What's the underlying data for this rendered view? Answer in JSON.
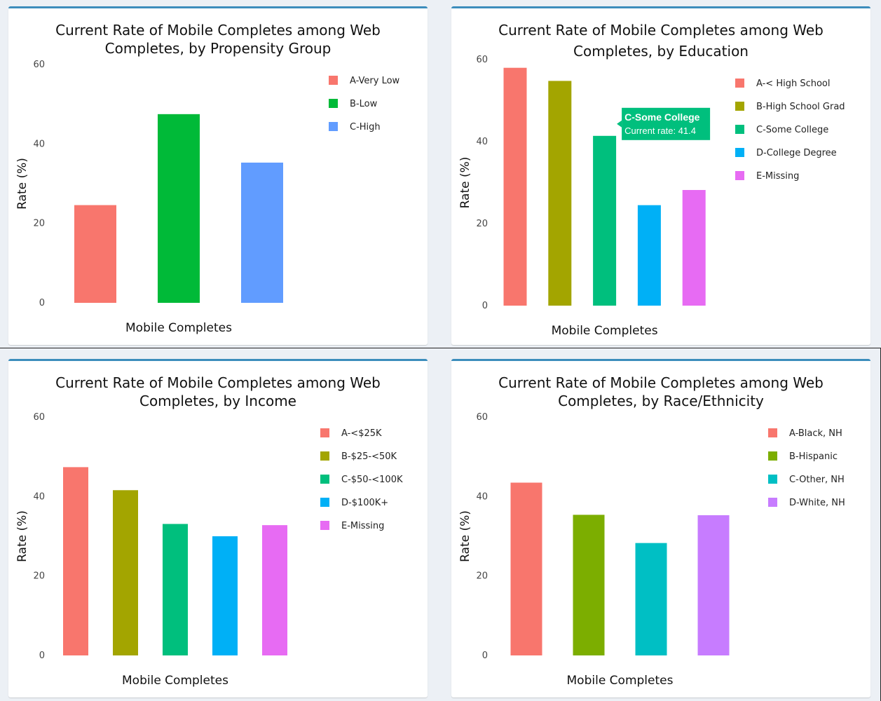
{
  "chart_data": [
    {
      "id": "propensity",
      "type": "bar",
      "title": [
        "Current Rate of Mobile Completes among Web",
        "Completes, by Propensity Group"
      ],
      "xlabel": "Mobile Completes",
      "ylabel": "Rate (%)",
      "ylim": [
        0,
        60
      ],
      "yticks": [
        "0",
        "20",
        "40",
        "60"
      ],
      "categories": [
        "A-Very Low",
        "B-Low",
        "C-High"
      ],
      "values": [
        24.6,
        47.5,
        35.3
      ],
      "colors": [
        "#F8766D",
        "#00BA38",
        "#619CFF"
      ]
    },
    {
      "id": "education",
      "type": "bar",
      "title": [
        "Current Rate of Mobile Completes among Web",
        "Completes, by Education"
      ],
      "xlabel": "Mobile Completes",
      "ylabel": "Rate (%)",
      "ylim": [
        0,
        60
      ],
      "yticks": [
        "0",
        "20",
        "40",
        "60"
      ],
      "categories": [
        "A-< High School",
        "B-High School Grad",
        "C-Some College",
        "D-College Degree",
        "E-Missing"
      ],
      "values": [
        58.0,
        54.8,
        41.4,
        24.5,
        28.2
      ],
      "colors": [
        "#F8766D",
        "#A3A500",
        "#00BF7D",
        "#00B0F6",
        "#E76BF3"
      ],
      "tooltip": {
        "title": "C-Some College",
        "text": "Current rate: 41.4"
      }
    },
    {
      "id": "income",
      "type": "bar",
      "title": [
        "Current Rate of Mobile Completes among Web",
        "Completes, by Income"
      ],
      "xlabel": "Mobile Completes",
      "ylabel": "Rate (%)",
      "ylim": [
        0,
        60
      ],
      "yticks": [
        "0",
        "20",
        "40",
        "60"
      ],
      "categories": [
        "A-<$25K",
        "B-$25-<50K",
        "C-$50-<100K",
        "D-$100K+",
        "E-Missing"
      ],
      "values": [
        47.4,
        41.6,
        33.1,
        30.0,
        32.8
      ],
      "colors": [
        "#F8766D",
        "#A3A500",
        "#00BF7D",
        "#00B0F6",
        "#E76BF3"
      ]
    },
    {
      "id": "race",
      "type": "bar",
      "title": [
        "Current Rate of Mobile Completes among Web",
        "Completes, by Race/Ethnicity"
      ],
      "xlabel": "Mobile Completes",
      "ylabel": "Rate (%)",
      "ylim": [
        0,
        60
      ],
      "yticks": [
        "0",
        "20",
        "40",
        "60"
      ],
      "categories": [
        "A-Black, NH",
        "B-Hispanic",
        "C-Other, NH",
        "D-White, NH"
      ],
      "values": [
        43.5,
        35.4,
        28.3,
        35.3
      ],
      "colors": [
        "#F8766D",
        "#7CAE00",
        "#00BFC4",
        "#C77CFF"
      ]
    }
  ]
}
